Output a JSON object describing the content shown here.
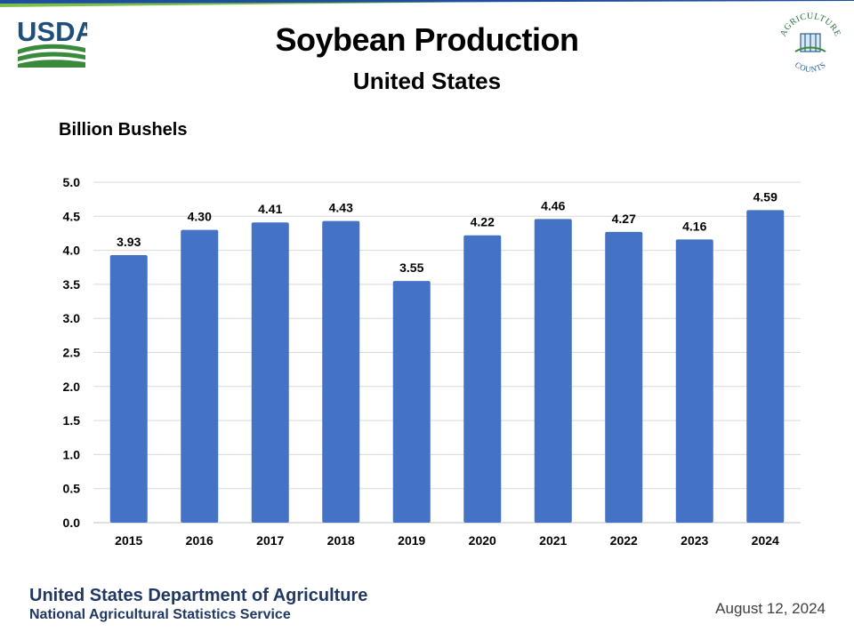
{
  "header": {
    "title": "Soybean Production",
    "subtitle": "United States",
    "usda_logo_text": "USDA",
    "ag_logo_text_top": "AGRICULTURE",
    "ag_logo_text_bottom": "COUNTS"
  },
  "footer": {
    "department": "United States Department of Agriculture",
    "service": "National Agricultural Statistics Service",
    "date": "August 12, 2024"
  },
  "colors": {
    "bar": "#4472c4",
    "usda_blue": "#1f4e79",
    "usda_green": "#3a8a3c",
    "stripe_blue": "#1f4e9e",
    "stripe_green": "#7cc04a",
    "footer_text": "#1f3864"
  },
  "chart_data": {
    "type": "bar",
    "title": "Soybean Production",
    "subtitle": "United States",
    "ylabel": "Billion Bushels",
    "xlabel": "",
    "categories": [
      "2015",
      "2016",
      "2017",
      "2018",
      "2019",
      "2020",
      "2021",
      "2022",
      "2023",
      "2024"
    ],
    "values": [
      3.93,
      4.3,
      4.41,
      4.43,
      3.55,
      4.22,
      4.46,
      4.27,
      4.16,
      4.59
    ],
    "data_labels": [
      "3.93",
      "4.30",
      "4.41",
      "4.43",
      "3.55",
      "4.22",
      "4.46",
      "4.27",
      "4.16",
      "4.59"
    ],
    "ylim": [
      0.0,
      5.0
    ],
    "yticks": [
      0.0,
      0.5,
      1.0,
      1.5,
      2.0,
      2.5,
      3.0,
      3.5,
      4.0,
      4.5,
      5.0
    ],
    "ytick_labels": [
      "0.0",
      "0.5",
      "1.0",
      "1.5",
      "2.0",
      "2.5",
      "3.0",
      "3.5",
      "4.0",
      "4.5",
      "5.0"
    ],
    "grid": true,
    "legend": "none"
  }
}
